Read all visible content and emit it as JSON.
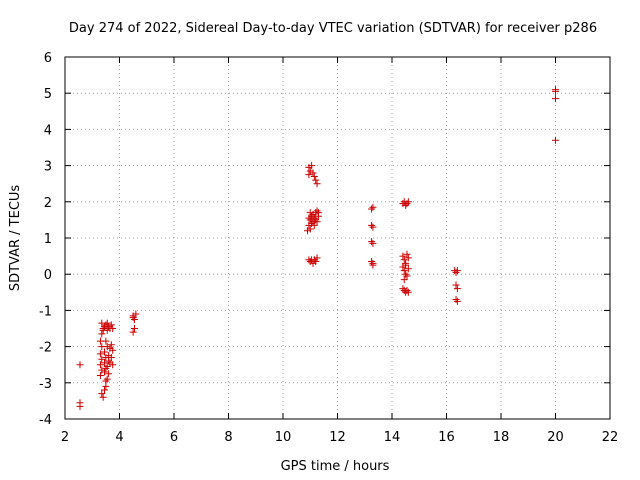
{
  "chart_data": {
    "type": "scatter",
    "title": "Day 274 of 2022, Sidereal Day-to-day VTEC variation (SDTVAR) for receiver p286",
    "xlabel": "GPS time / hours",
    "ylabel": "SDTVAR / TECUs",
    "xlim": [
      2,
      22
    ],
    "ylim": [
      -4,
      6
    ],
    "xticks": [
      2,
      4,
      6,
      8,
      10,
      12,
      14,
      16,
      18,
      20,
      22
    ],
    "yticks": [
      -4,
      -3,
      -2,
      -1,
      0,
      1,
      2,
      3,
      4,
      5,
      6
    ],
    "grid": true,
    "marker": "+",
    "color": "#cc0000",
    "series": [
      {
        "name": "SDTVAR",
        "points": [
          [
            2.55,
            -2.5
          ],
          [
            2.55,
            -3.55
          ],
          [
            2.55,
            -3.65
          ],
          [
            3.35,
            -1.35
          ],
          [
            3.4,
            -1.5
          ],
          [
            3.35,
            -1.65
          ],
          [
            3.3,
            -1.85
          ],
          [
            3.35,
            -2.0
          ],
          [
            3.3,
            -2.2
          ],
          [
            3.35,
            -2.35
          ],
          [
            3.3,
            -2.5
          ],
          [
            3.35,
            -2.65
          ],
          [
            3.3,
            -2.8
          ],
          [
            3.35,
            -3.3
          ],
          [
            3.4,
            -3.4
          ],
          [
            3.45,
            -1.45
          ],
          [
            3.45,
            -2.15
          ],
          [
            3.45,
            -2.45
          ],
          [
            3.45,
            -3.2
          ],
          [
            3.5,
            -1.4
          ],
          [
            3.5,
            -1.85
          ],
          [
            3.5,
            -2.3
          ],
          [
            3.5,
            -2.6
          ],
          [
            3.5,
            -3.1
          ],
          [
            3.55,
            -1.55
          ],
          [
            3.55,
            -2.0
          ],
          [
            3.55,
            -2.55
          ],
          [
            3.55,
            -2.9
          ],
          [
            3.6,
            -1.45
          ],
          [
            3.6,
            -2.25
          ],
          [
            3.6,
            -2.75
          ],
          [
            3.65,
            -1.5
          ],
          [
            3.65,
            -2.05
          ],
          [
            3.65,
            -2.45
          ],
          [
            3.7,
            -1.4
          ],
          [
            3.7,
            -1.95
          ],
          [
            3.7,
            -2.3
          ],
          [
            3.75,
            -1.5
          ],
          [
            3.75,
            -2.1
          ],
          [
            3.75,
            -2.5
          ],
          [
            3.4,
            -1.55
          ],
          [
            3.55,
            -1.35
          ],
          [
            3.45,
            -2.7
          ],
          [
            3.5,
            -2.95
          ],
          [
            3.6,
            -2.4
          ],
          [
            4.5,
            -1.15
          ],
          [
            4.55,
            -1.25
          ],
          [
            4.6,
            -1.1
          ],
          [
            4.5,
            -1.2
          ],
          [
            4.55,
            -1.5
          ],
          [
            4.5,
            -1.6
          ],
          [
            10.95,
            2.95
          ],
          [
            11.0,
            2.85
          ],
          [
            11.05,
            3.0
          ],
          [
            11.1,
            2.8
          ],
          [
            11.15,
            2.7
          ],
          [
            11.2,
            2.6
          ],
          [
            11.25,
            2.5
          ],
          [
            10.95,
            2.75
          ],
          [
            10.9,
            1.2
          ],
          [
            10.95,
            1.35
          ],
          [
            11.0,
            1.5
          ],
          [
            11.05,
            1.6
          ],
          [
            11.1,
            1.45
          ],
          [
            11.15,
            1.55
          ],
          [
            11.2,
            1.7
          ],
          [
            11.25,
            1.75
          ],
          [
            11.3,
            1.6
          ],
          [
            11.0,
            1.25
          ],
          [
            11.05,
            1.4
          ],
          [
            11.1,
            1.65
          ],
          [
            11.15,
            1.35
          ],
          [
            11.2,
            1.5
          ],
          [
            10.95,
            1.55
          ],
          [
            11.25,
            1.45
          ],
          [
            11.3,
            1.7
          ],
          [
            11.0,
            1.7
          ],
          [
            10.95,
            0.4
          ],
          [
            11.0,
            0.35
          ],
          [
            11.05,
            0.4
          ],
          [
            11.1,
            0.3
          ],
          [
            11.15,
            0.4
          ],
          [
            11.2,
            0.35
          ],
          [
            11.25,
            0.45
          ],
          [
            13.25,
            1.8
          ],
          [
            13.3,
            1.85
          ],
          [
            13.25,
            1.35
          ],
          [
            13.3,
            1.3
          ],
          [
            13.25,
            0.9
          ],
          [
            13.3,
            0.85
          ],
          [
            13.25,
            0.35
          ],
          [
            13.3,
            0.3
          ],
          [
            13.3,
            0.25
          ],
          [
            14.4,
            1.95
          ],
          [
            14.45,
            2.0
          ],
          [
            14.5,
            1.9
          ],
          [
            14.55,
            1.95
          ],
          [
            14.6,
            2.0
          ],
          [
            14.4,
            0.5
          ],
          [
            14.45,
            0.4
          ],
          [
            14.5,
            0.3
          ],
          [
            14.55,
            0.55
          ],
          [
            14.6,
            0.45
          ],
          [
            14.4,
            0.2
          ],
          [
            14.45,
            0.1
          ],
          [
            14.5,
            0.0
          ],
          [
            14.55,
            -0.05
          ],
          [
            14.6,
            0.15
          ],
          [
            14.45,
            -0.15
          ],
          [
            14.5,
            0.25
          ],
          [
            14.4,
            -0.4
          ],
          [
            14.45,
            -0.45
          ],
          [
            14.5,
            -0.5
          ],
          [
            14.55,
            -0.45
          ],
          [
            14.6,
            -0.5
          ],
          [
            16.3,
            0.1
          ],
          [
            16.35,
            0.05
          ],
          [
            16.4,
            0.1
          ],
          [
            16.35,
            -0.3
          ],
          [
            16.4,
            -0.4
          ],
          [
            16.35,
            -0.7
          ],
          [
            16.4,
            -0.75
          ],
          [
            20.0,
            5.1
          ],
          [
            20.0,
            5.05
          ],
          [
            20.0,
            4.85
          ],
          [
            20.0,
            3.7
          ]
        ]
      }
    ]
  }
}
